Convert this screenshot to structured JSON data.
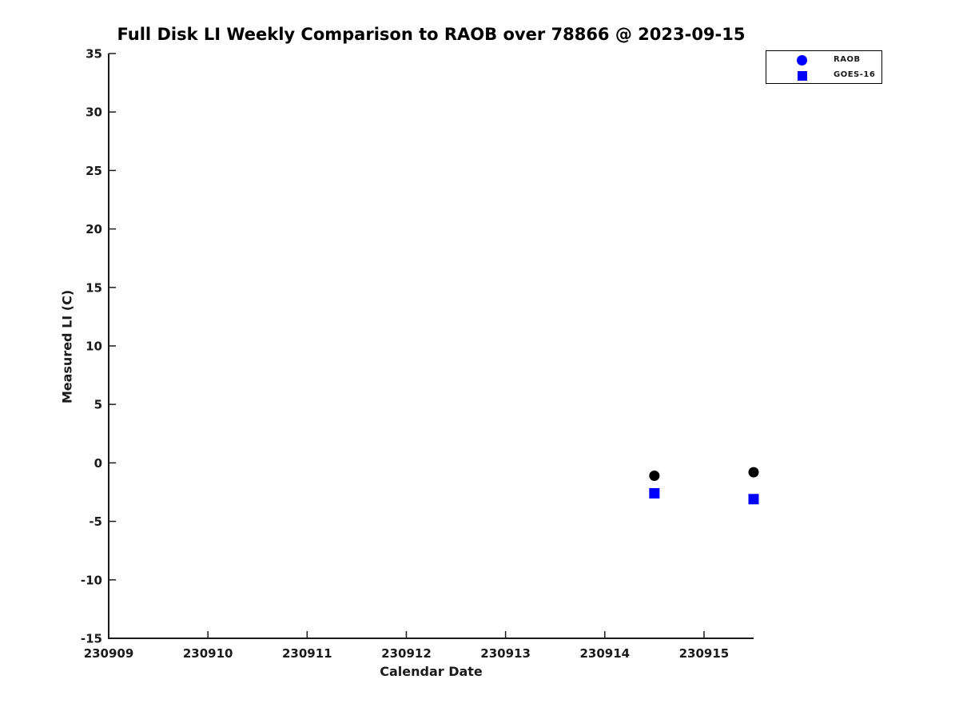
{
  "chart_data": {
    "type": "scatter",
    "title": "Full Disk LI Weekly Comparison to RAOB over 78866 @ 2023-09-15",
    "xlabel": "Calendar Date",
    "ylabel": "Measured LI (C)",
    "xlim": [
      230909,
      230915.5
    ],
    "ylim": [
      -15,
      35
    ],
    "x_ticks": [
      230909,
      230910,
      230911,
      230912,
      230913,
      230914,
      230915
    ],
    "y_ticks": [
      -15,
      -10,
      -5,
      0,
      5,
      10,
      15,
      20,
      25,
      30,
      35
    ],
    "grid": false,
    "background_color": "#ffffff",
    "axis_color": "#1a1a1a",
    "legend_position": "top-right",
    "series": [
      {
        "name": "RAOB",
        "marker": "circle",
        "plot_color": "#000000",
        "legend_color": "#0000ff",
        "x": [
          230914.5,
          230915.5
        ],
        "y": [
          -1.1,
          -0.8
        ]
      },
      {
        "name": "GOES-16",
        "marker": "square",
        "plot_color": "#0000ff",
        "legend_color": "#0000ff",
        "x": [
          230914.5,
          230915.5
        ],
        "y": [
          -2.6,
          -3.1
        ]
      }
    ]
  }
}
